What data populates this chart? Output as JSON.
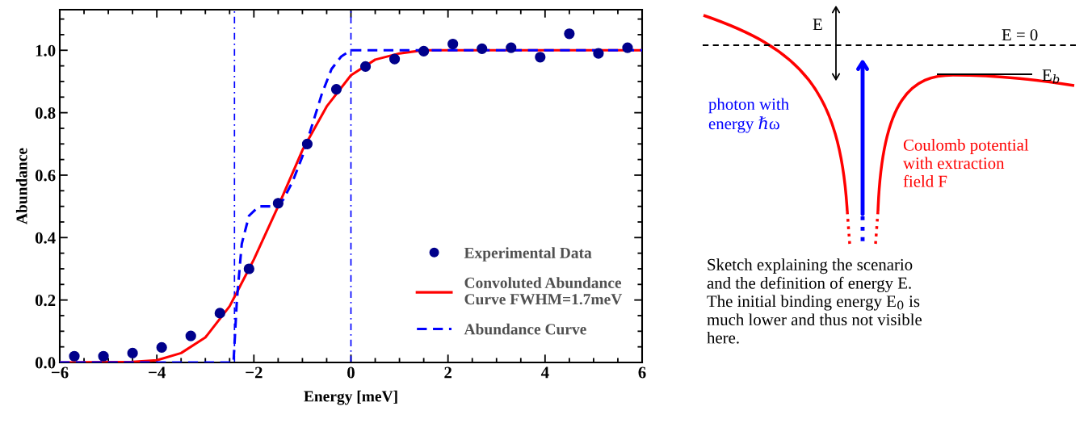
{
  "chart_data": [
    {
      "type": "scatter",
      "xlabel": "Energy [meV]",
      "ylabel": "Abundance",
      "xlim": [
        -6,
        6
      ],
      "xticks": [
        {
          "value": -6,
          "label": "−6"
        },
        {
          "value": -4,
          "label": "−4"
        },
        {
          "value": -2,
          "label": "−2"
        },
        0,
        2,
        4,
        6
      ],
      "ylim": [
        0,
        1.13
      ],
      "yticks": [
        {
          "value": 0,
          "label": "0.0"
        },
        0.2,
        0.4,
        0.6,
        0.8,
        {
          "value": 1.0,
          "label": "1.0"
        }
      ],
      "grid": false,
      "legend": "lower right",
      "series": [
        {
          "name": "Experimental Data",
          "type": "scatter",
          "color": "#00008b",
          "marker": "circle",
          "x": [
            -5.7,
            -5.1,
            -4.5,
            -3.9,
            -3.3,
            -2.7,
            -2.1,
            -1.5,
            -0.9,
            -0.3,
            0.3,
            0.9,
            1.5,
            2.1,
            2.7,
            3.3,
            3.9,
            4.5,
            5.1,
            5.7
          ],
          "values": [
            0.02,
            0.02,
            0.03,
            0.048,
            0.085,
            0.158,
            0.3,
            0.51,
            0.7,
            0.875,
            0.948,
            0.972,
            0.997,
            1.02,
            1.005,
            1.008,
            0.978,
            1.053,
            0.99,
            1.008
          ]
        },
        {
          "name": "Convoluted Abundance\nCurve FWHM=1.7meV",
          "type": "line",
          "color": "#ff0000",
          "line_style": "solid",
          "x": [
            -6,
            -4.5,
            -4,
            -3.5,
            -3,
            -2.5,
            -2.3,
            -2,
            -1.5,
            -1,
            -0.5,
            0,
            0.5,
            1,
            1.5,
            6
          ],
          "values": [
            0,
            0.002,
            0.007,
            0.03,
            0.08,
            0.18,
            0.24,
            0.33,
            0.5,
            0.68,
            0.82,
            0.92,
            0.97,
            0.99,
            1.0,
            1.0
          ]
        },
        {
          "name": "Abundance Curve",
          "type": "line",
          "color": "#0000ff",
          "line_style": "dashed",
          "x": [
            -6,
            -2.42,
            -2.35,
            -2.25,
            -2.1,
            -1.9,
            -1.6,
            -1.4,
            -1.2,
            -1.0,
            -0.8,
            -0.6,
            -0.4,
            -0.2,
            0,
            6
          ],
          "values": [
            0,
            0,
            0.2,
            0.38,
            0.47,
            0.5,
            0.5,
            0.52,
            0.58,
            0.66,
            0.76,
            0.86,
            0.94,
            0.98,
            1.0,
            1.0
          ]
        }
      ],
      "ref_lines": [
        {
          "axis": "x",
          "value": -2.4,
          "color": "#0000ff",
          "line_style": "dashdot"
        },
        {
          "axis": "x",
          "value": 0,
          "color": "#0000ff",
          "line_style": "dashdot"
        }
      ]
    },
    {
      "type": "other",
      "annotations": [
        "E",
        "E = 0",
        "E$_{b}$",
        "photon with\nenergy ℏω",
        "Coulomb potential\nwith extraction\nfield F",
        "Sketch explaining the scenario\nand the definition of energy E.\nThe initial binding energy E$_{0}$ is\nmuch lower and thus not visible\nhere."
      ]
    }
  ]
}
